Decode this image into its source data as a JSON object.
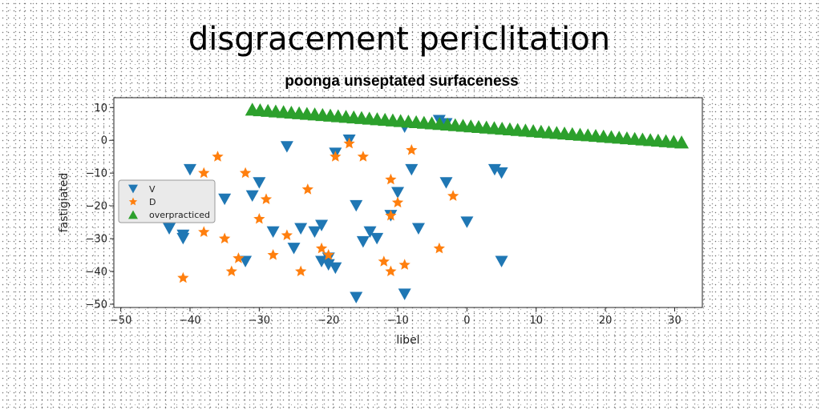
{
  "chart_data": {
    "type": "scatter",
    "title": "disgracement periclitation",
    "subtitle": "poonga unseptated surfaceness",
    "xlabel": "libel",
    "ylabel": "fastigiated",
    "xlim": [
      -51,
      34
    ],
    "ylim": [
      -51,
      13
    ],
    "x_ticks": [
      -50,
      -40,
      -30,
      -20,
      -10,
      0,
      10,
      20,
      30
    ],
    "y_ticks": [
      10,
      0,
      -10,
      -20,
      -30,
      -40,
      -50
    ],
    "grid": false,
    "legend_position": "left",
    "series": [
      {
        "name": "V",
        "marker": "triangle-down",
        "color": "#1f77b4",
        "points": [
          [
            -43,
            -27
          ],
          [
            -41,
            -29
          ],
          [
            -41,
            -30
          ],
          [
            -40,
            -9
          ],
          [
            -35,
            -18
          ],
          [
            -32,
            -37
          ],
          [
            -31,
            -17
          ],
          [
            -30,
            -13
          ],
          [
            -28,
            -28
          ],
          [
            -26,
            -2
          ],
          [
            -25,
            -33
          ],
          [
            -24,
            -27
          ],
          [
            -22,
            -28
          ],
          [
            -21,
            -26
          ],
          [
            -21,
            -37
          ],
          [
            -20,
            -36
          ],
          [
            -20,
            -38
          ],
          [
            -19,
            -4
          ],
          [
            -19,
            -39
          ],
          [
            -17,
            0
          ],
          [
            -16,
            -20
          ],
          [
            -16,
            -48
          ],
          [
            -15,
            -31
          ],
          [
            -14,
            -28
          ],
          [
            -13,
            -30
          ],
          [
            -11,
            -23
          ],
          [
            -10,
            -16
          ],
          [
            -9,
            -47
          ],
          [
            -9,
            4
          ],
          [
            -8,
            -9
          ],
          [
            -7,
            -27
          ],
          [
            -4,
            6
          ],
          [
            -3,
            5
          ],
          [
            -3,
            -13
          ],
          [
            0,
            -25
          ],
          [
            4,
            -9
          ],
          [
            5,
            -10
          ],
          [
            5,
            -37
          ]
        ]
      },
      {
        "name": "D",
        "marker": "star",
        "color": "#ff7f0e",
        "points": [
          [
            -41,
            -42
          ],
          [
            -38,
            -10
          ],
          [
            -38,
            -28
          ],
          [
            -36,
            -5
          ],
          [
            -35,
            -30
          ],
          [
            -34,
            -40
          ],
          [
            -33,
            -36
          ],
          [
            -32,
            -10
          ],
          [
            -30,
            -24
          ],
          [
            -29,
            -18
          ],
          [
            -28,
            -35
          ],
          [
            -26,
            -29
          ],
          [
            -24,
            -40
          ],
          [
            -23,
            -15
          ],
          [
            -21,
            -33
          ],
          [
            -20,
            -35
          ],
          [
            -19,
            -5
          ],
          [
            -17,
            -1
          ],
          [
            -15,
            -5
          ],
          [
            -12,
            -37
          ],
          [
            -11,
            -40
          ],
          [
            -11,
            -23
          ],
          [
            -11,
            -12
          ],
          [
            -10,
            -19
          ],
          [
            -9,
            -38
          ],
          [
            -8,
            -3
          ],
          [
            -4,
            -33
          ],
          [
            -2,
            -17
          ]
        ]
      },
      {
        "name": "overpracticed",
        "marker": "triangle-up",
        "color": "#2ca02c",
        "line_from": [
          -31,
          9.5
        ],
        "line_to": [
          31,
          -0.5
        ],
        "count": 56
      }
    ]
  }
}
